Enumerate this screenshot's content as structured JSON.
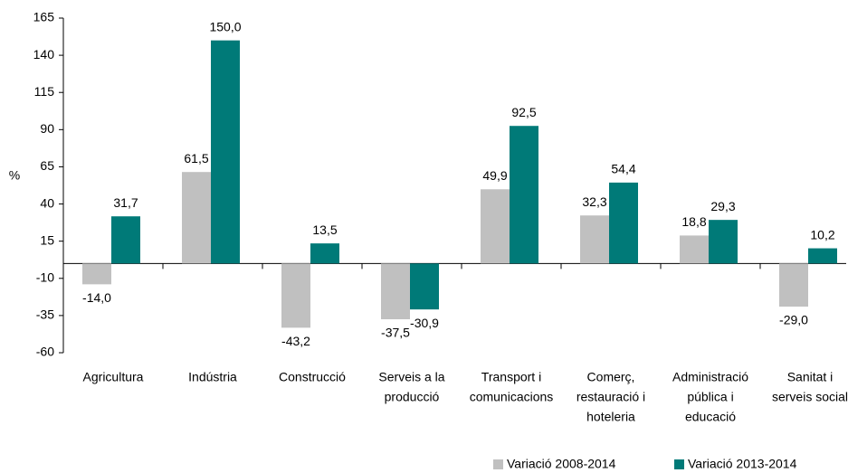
{
  "chart_data": {
    "type": "bar",
    "y_label": "%",
    "categories": [
      [
        "Agricultura"
      ],
      [
        "Indústria"
      ],
      [
        "Construcció"
      ],
      [
        "Serveis a la",
        "producció"
      ],
      [
        "Transport i",
        "comunicacions"
      ],
      [
        "Comerç,",
        "restauració i",
        "hoteleria"
      ],
      [
        "Administració",
        "pública i",
        "educació"
      ],
      [
        "Sanitat i",
        "serveis social"
      ]
    ],
    "series": [
      {
        "name": "Variació 2008-2014",
        "color": "#c0c0c0",
        "values": [
          -14.0,
          61.5,
          -43.2,
          -37.5,
          49.9,
          32.3,
          18.8,
          -29.0
        ],
        "value_labels": [
          "-14,0",
          "61,5",
          "-43,2",
          "-37,5",
          "49,9",
          "32,3",
          "18,8",
          "-29,0"
        ]
      },
      {
        "name": "Variació 2013-2014",
        "color": "#007a78",
        "values": [
          31.7,
          150.0,
          13.5,
          -30.9,
          92.5,
          54.4,
          29.3,
          10.2
        ],
        "value_labels": [
          "31,7",
          "150,0",
          "13,5",
          "-30,9",
          "92,5",
          "54,4",
          "29,3",
          "10,2"
        ]
      }
    ],
    "ylim": [
      -60,
      165
    ],
    "yticks": [
      -60,
      -35,
      -10,
      15,
      40,
      65,
      90,
      115,
      140,
      165
    ],
    "grid": false
  }
}
